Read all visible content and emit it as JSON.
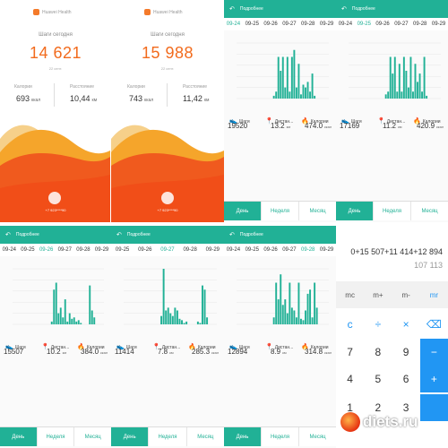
{
  "colors": {
    "accent": "#21b196",
    "orange": "#f26b1d",
    "blue": "#2196f3"
  },
  "home1": {
    "brand": "Huawei Health",
    "steps_label": "Шаги сегодня",
    "steps": "14 621",
    "date": "22 сент.",
    "cal_label": "Калории",
    "dist_label": "Расстояние",
    "cal": "693",
    "cal_unit": "ккал",
    "dist": "10,44",
    "dist_unit": "км",
    "phone": "+7 923****90"
  },
  "home2": {
    "brand": "Huawei Health",
    "steps_label": "Шаги сегодня",
    "steps": "15 988",
    "date": "22 сент.",
    "cal_label": "Калории",
    "dist_label": "Расстояние",
    "cal": "743",
    "cal_unit": "ккал",
    "dist": "11,42",
    "dist_unit": "км",
    "phone": "+7 923****90"
  },
  "detail_common": {
    "title": "Подробнее",
    "steps_label": "Шаги",
    "dist_label": "Дистан...",
    "cal_label": "Калории",
    "dist_unit": "км",
    "cal_unit": "ккал",
    "tab_day": "День",
    "tab_week": "Неделя",
    "tab_month": "Месяц",
    "dates": [
      "09-24",
      "09-25",
      "09-26",
      "09-27",
      "09-28",
      "09-29"
    ]
  },
  "details": [
    {
      "steps": "19520",
      "dist": "13.2",
      "cal": "474.0",
      "selected": 0,
      "dates": [
        "09-24",
        "09-25",
        "09-26",
        "09-27",
        "09-28",
        "09-29"
      ]
    },
    {
      "steps": "17169",
      "dist": "11.2",
      "cal": "420.9",
      "selected": 1,
      "dates": [
        "09-24",
        "09-25",
        "09-26",
        "09-27",
        "09-28",
        "09-29"
      ]
    },
    {
      "steps": "15507",
      "dist": "10.2",
      "cal": "384.0",
      "selected": 2,
      "dates": [
        "09-24",
        "09-25",
        "09-26",
        "09-27",
        "09-28",
        "09-29"
      ]
    },
    {
      "steps": "11414",
      "dist": "7.8",
      "cal": "285.3",
      "selected": 3,
      "dates": [
        "09-25",
        "09-26",
        "09-27",
        "09-28",
        "09-29"
      ]
    },
    {
      "steps": "12894",
      "dist": "8.9",
      "cal": "314.8",
      "selected": 4,
      "dates": [
        "09-24",
        "09-25",
        "09-26",
        "09-27",
        "09-28",
        "09-29"
      ]
    }
  ],
  "chart_data": [
    {
      "type": "bar",
      "title": "",
      "values": [
        0,
        0,
        0,
        0,
        0,
        0,
        0,
        0,
        0,
        0,
        0,
        0,
        0,
        0,
        0,
        0,
        2,
        5,
        30,
        20,
        30,
        8,
        30,
        5,
        30,
        35,
        8,
        25,
        3,
        10,
        8,
        12,
        5,
        18,
        2,
        0,
        0,
        0,
        0,
        0
      ]
    },
    {
      "type": "bar",
      "title": "",
      "values": [
        0,
        0,
        0,
        0,
        0,
        0,
        0,
        0,
        0,
        0,
        0,
        0,
        0,
        0,
        0,
        0,
        3,
        5,
        30,
        18,
        30,
        5,
        25,
        5,
        30,
        20,
        8,
        30,
        5,
        25,
        12,
        18,
        5,
        30,
        2,
        0,
        0,
        0,
        0,
        0
      ]
    },
    {
      "type": "bar",
      "title": "",
      "values": [
        0,
        0,
        0,
        0,
        0,
        0,
        0,
        0,
        0,
        0,
        0,
        0,
        0,
        0,
        0,
        0,
        0,
        2,
        25,
        30,
        8,
        12,
        5,
        18,
        2,
        8,
        4,
        5,
        2,
        3,
        1,
        0,
        0,
        0,
        28,
        10,
        5,
        0,
        0,
        0
      ]
    },
    {
      "type": "bar",
      "title": "",
      "values": [
        0,
        0,
        0,
        0,
        0,
        0,
        0,
        0,
        0,
        0,
        0,
        0,
        0,
        0,
        0,
        0,
        6,
        40,
        10,
        12,
        8,
        6,
        12,
        10,
        4,
        3,
        1,
        2,
        0,
        0,
        0,
        0,
        2,
        1,
        28,
        25,
        5,
        0,
        0,
        0
      ]
    },
    {
      "type": "bar",
      "title": "",
      "values": [
        0,
        0,
        0,
        0,
        0,
        0,
        0,
        0,
        0,
        0,
        0,
        0,
        0,
        0,
        0,
        0,
        5,
        30,
        18,
        36,
        14,
        18,
        8,
        30,
        12,
        10,
        5,
        30,
        4,
        3,
        10,
        22,
        25,
        5,
        30,
        12,
        0,
        0,
        0,
        0
      ]
    }
  ],
  "calc": {
    "expr": "0+15 507+11 414+12 894",
    "result": "107 113",
    "keys": [
      [
        "mc",
        "m+",
        "m-",
        "mr"
      ],
      [
        "c",
        "÷",
        "×",
        "⌫"
      ],
      [
        "7",
        "8",
        "9",
        "−"
      ],
      [
        "4",
        "5",
        "6",
        "+"
      ],
      [
        "1",
        "2",
        "3",
        ""
      ]
    ]
  },
  "logo": {
    "text": "diets.ru"
  }
}
